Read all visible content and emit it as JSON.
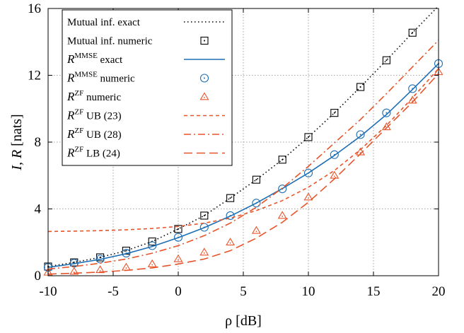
{
  "chart_data": {
    "type": "line",
    "xlabel": "ρ [dB]",
    "ylabel": {
      "main": "I, R",
      "unit": "[nats]"
    },
    "xlim": [
      -10,
      20
    ],
    "ylim": [
      0,
      16
    ],
    "xticks": [
      "-10",
      "-5",
      "0",
      "5",
      "10",
      "15",
      "20"
    ],
    "yticks": [
      "0",
      "4",
      "8",
      "12",
      "16"
    ],
    "xtick_values": [
      -10,
      -5,
      0,
      5,
      10,
      15,
      20
    ],
    "ytick_values": [
      0,
      4,
      8,
      12,
      16
    ],
    "grid": true,
    "legend_position": "top-left",
    "series": [
      {
        "key": "mi_exact",
        "label": {
          "pre": "Mutual inf. exact",
          "sup": "",
          "post": ""
        },
        "style": "dotted",
        "color": "#000000",
        "x": [
          -10,
          -8,
          -6,
          -4,
          -2,
          0,
          2,
          4,
          6,
          8,
          10,
          12,
          14,
          16,
          18,
          20
        ],
        "y": [
          0.55,
          0.8,
          1.1,
          1.5,
          2.05,
          2.8,
          3.6,
          4.65,
          5.75,
          6.95,
          8.3,
          9.75,
          11.3,
          12.9,
          14.55,
          16.15
        ]
      },
      {
        "key": "mi_numeric",
        "label": {
          "pre": "Mutual inf. numeric",
          "sup": "",
          "post": ""
        },
        "style": "marker-square",
        "color": "#000000",
        "x": [
          -10,
          -8,
          -6,
          -4,
          -2,
          0,
          2,
          4,
          6,
          8,
          10,
          12,
          14,
          16,
          18
        ],
        "y": [
          0.55,
          0.8,
          1.1,
          1.5,
          2.05,
          2.8,
          3.6,
          4.65,
          5.75,
          6.95,
          8.3,
          9.75,
          11.3,
          12.9,
          14.55
        ]
      },
      {
        "key": "mmse_exact",
        "label": {
          "pre": "R",
          "sup": "MMSE",
          "post": " exact"
        },
        "style": "solid",
        "color": "#1f6fb4",
        "x": [
          -10,
          -8,
          -6,
          -4,
          -2,
          0,
          2,
          4,
          6,
          8,
          10,
          12,
          14,
          16,
          18,
          20
        ],
        "y": [
          0.5,
          0.72,
          0.98,
          1.32,
          1.75,
          2.28,
          2.88,
          3.57,
          4.35,
          5.22,
          6.15,
          7.2,
          8.35,
          9.65,
          11.15,
          12.7
        ]
      },
      {
        "key": "mmse_numeric",
        "label": {
          "pre": "R",
          "sup": "MMSE",
          "post": " numeric"
        },
        "style": "marker-circle",
        "color": "#1f6fb4",
        "x": [
          -10,
          -8,
          -6,
          -4,
          -2,
          0,
          2,
          4,
          6,
          8,
          10,
          12,
          14,
          16,
          18,
          20
        ],
        "y": [
          0.5,
          0.75,
          1.0,
          1.35,
          1.8,
          2.3,
          2.9,
          3.6,
          4.35,
          5.2,
          6.15,
          7.25,
          8.45,
          9.75,
          11.2,
          12.7
        ]
      },
      {
        "key": "zf_numeric",
        "label": {
          "pre": "R",
          "sup": "ZF",
          "post": " numeric"
        },
        "style": "marker-triangle",
        "color": "#e8542a",
        "x": [
          -10,
          -8,
          -6,
          -4,
          -2,
          0,
          2,
          4,
          6,
          8,
          10,
          12,
          14,
          16,
          18,
          20
        ],
        "y": [
          0.2,
          0.25,
          0.35,
          0.5,
          0.7,
          1.0,
          1.4,
          2.0,
          2.7,
          3.6,
          4.7,
          6.0,
          7.4,
          8.9,
          10.5,
          12.2
        ]
      },
      {
        "key": "zf_ub23",
        "label": {
          "pre": "R",
          "sup": "ZF",
          "post": " UB (23)"
        },
        "style": "dashed-short",
        "color": "#e8542a",
        "x": [
          -10,
          -8,
          -6,
          -4,
          -2,
          0,
          2,
          4,
          6,
          8,
          10,
          12,
          14,
          16,
          18,
          20
        ],
        "y": [
          2.65,
          2.67,
          2.7,
          2.75,
          2.83,
          2.95,
          3.15,
          3.45,
          3.9,
          4.5,
          5.3,
          6.3,
          7.55,
          9.0,
          10.65,
          12.4
        ]
      },
      {
        "key": "zf_ub28",
        "label": {
          "pre": "R",
          "sup": "ZF",
          "post": " UB (28)"
        },
        "style": "dash-dot",
        "color": "#e8542a",
        "x": [
          -10,
          -8,
          -6,
          -4,
          -2,
          0,
          2,
          4,
          6,
          8,
          10,
          12,
          14,
          16,
          18,
          20
        ],
        "y": [
          0.4,
          0.55,
          0.75,
          1.0,
          1.35,
          1.8,
          2.4,
          3.15,
          4.1,
          5.25,
          6.55,
          7.95,
          9.35,
          10.9,
          12.5,
          14.1
        ]
      },
      {
        "key": "zf_lb24",
        "label": {
          "pre": "R",
          "sup": "ZF",
          "post": " LB (24)"
        },
        "style": "dashed-long",
        "color": "#e8542a",
        "x": [
          -10,
          -8,
          -6,
          -4,
          -2,
          0,
          2,
          4,
          6,
          8,
          10,
          12,
          14,
          16,
          18,
          20
        ],
        "y": [
          0.1,
          0.15,
          0.22,
          0.32,
          0.47,
          0.7,
          1.0,
          1.5,
          2.25,
          3.2,
          4.4,
          5.8,
          7.3,
          8.85,
          10.4,
          12.1
        ]
      }
    ]
  }
}
